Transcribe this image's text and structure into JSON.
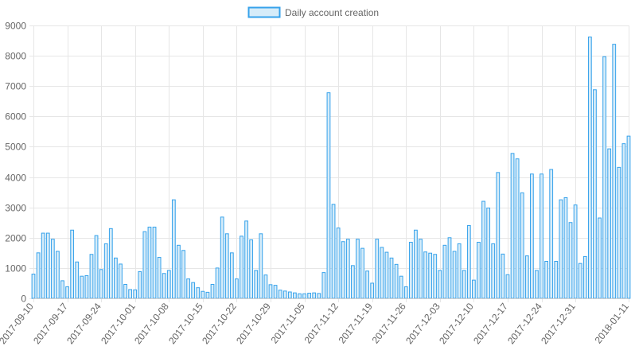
{
  "colors": {
    "bar_fill": "#d6ecf9",
    "bar_stroke": "#36a2eb",
    "grid": "#e6e6e6",
    "axis_text": "#666666"
  },
  "chart_data": {
    "type": "bar",
    "title": "",
    "xlabel": "",
    "ylabel": "",
    "ylim": [
      0,
      9000
    ],
    "yticks": [
      0,
      1000,
      2000,
      3000,
      4000,
      5000,
      6000,
      7000,
      8000,
      9000
    ],
    "grid": true,
    "legend_position": "top-center",
    "x_tick_labels": [
      "2017-09-10",
      "2017-09-17",
      "2017-09-24",
      "2017-10-01",
      "2017-10-08",
      "2017-10-15",
      "2017-10-22",
      "2017-10-29",
      "2017-11-05",
      "2017-11-12",
      "2017-11-19",
      "2017-11-26",
      "2017-12-03",
      "2017-12-10",
      "2017-12-17",
      "2017-12-24",
      "2017-12-31",
      "2018-01-11"
    ],
    "x_start": "2017-09-10",
    "x_end": "2018-01-11",
    "series": [
      {
        "name": "Daily account creation",
        "values": [
          800,
          1500,
          2150,
          2150,
          1950,
          1550,
          580,
          380,
          2250,
          1200,
          730,
          750,
          1450,
          2070,
          950,
          1800,
          2300,
          1330,
          1130,
          460,
          290,
          280,
          880,
          2200,
          2350,
          2350,
          1350,
          820,
          920,
          3250,
          1750,
          1580,
          640,
          520,
          350,
          230,
          200,
          460,
          1000,
          2680,
          2130,
          1500,
          640,
          2050,
          2550,
          1930,
          920,
          2130,
          770,
          450,
          430,
          270,
          240,
          210,
          180,
          150,
          150,
          170,
          180,
          160,
          850,
          6780,
          3100,
          2320,
          1870,
          1950,
          1080,
          1950,
          1650,
          900,
          500,
          1950,
          1680,
          1520,
          1330,
          1120,
          730,
          380,
          1850,
          2250,
          1950,
          1530,
          1490,
          1450,
          920,
          1750,
          2000,
          1550,
          1800,
          920,
          2400,
          600,
          1850,
          3200,
          2980,
          1800,
          4150,
          1460,
          780,
          4780,
          4600,
          3480,
          1400,
          4100,
          920,
          4100,
          1220,
          4250,
          1220,
          3250,
          3320,
          2500,
          3080,
          1150,
          1380,
          8620,
          6880,
          2650,
          7970,
          4930,
          8380,
          4320,
          5100,
          5350
        ]
      }
    ]
  }
}
